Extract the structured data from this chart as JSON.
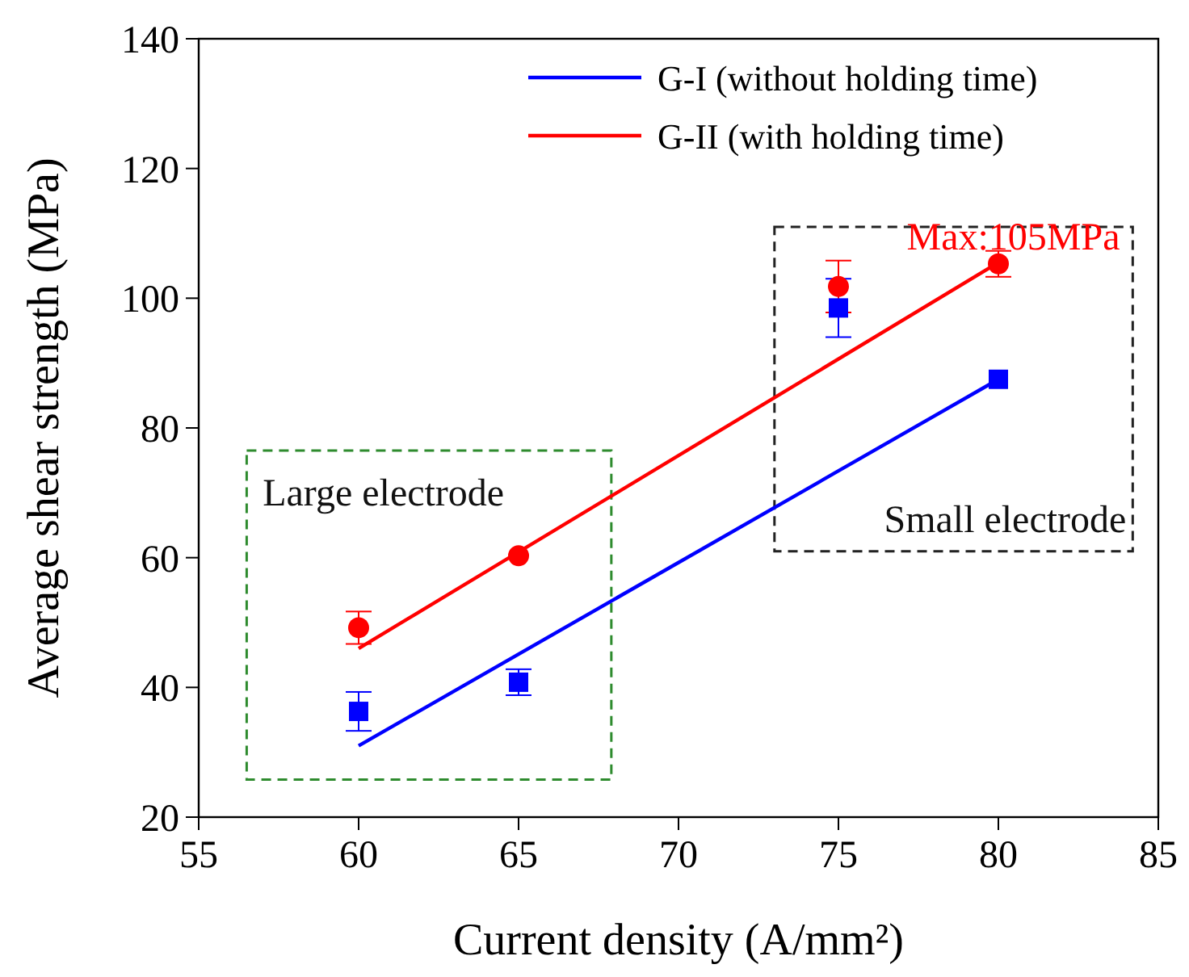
{
  "chart_data": {
    "type": "scatter",
    "xlabel": "Current density (A/mm²)",
    "ylabel": "Average shear strength (MPa)",
    "xlim": [
      55,
      85
    ],
    "xticks": [
      55,
      60,
      65,
      70,
      75,
      80,
      85
    ],
    "ylim": [
      20,
      140
    ],
    "yticks": [
      20,
      40,
      60,
      80,
      100,
      120,
      140
    ],
    "legend": "top right",
    "series": [
      {
        "color": "#0000ff",
        "marker": "square",
        "x": [
          60,
          65,
          75,
          80
        ],
        "values": [
          36.3,
          40.8,
          98.5,
          87.5
        ],
        "errors": [
          3,
          2,
          4.5,
          null
        ]
      },
      {
        "color": "#ff0000",
        "marker": "circle",
        "x": [
          60,
          65,
          75,
          80
        ],
        "values": [
          49.2,
          60.3,
          101.8,
          105.3
        ],
        "errors": [
          2.5,
          null,
          4,
          2
        ]
      },
      {
        "type": "line",
        "name": "G-I (without holding time)",
        "color": "#0000ff",
        "marker": "none",
        "x": [
          60,
          80
        ],
        "values": [
          31,
          87.5
        ]
      },
      {
        "type": "line",
        "name": "G-II (with holding time)",
        "color": "#ff0000",
        "marker": "none",
        "x": [
          60,
          80
        ],
        "values": [
          46,
          105.5
        ]
      }
    ],
    "annotations": [
      "Large electrode",
      "Small electrode",
      "Max:105MPa"
    ]
  }
}
